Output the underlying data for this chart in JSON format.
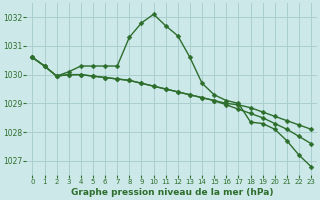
{
  "background_color": "#cce8e8",
  "grid_color": "#aacfcf",
  "line_color": "#2d6e2d",
  "marker_color": "#2d6e2d",
  "xlabel": "Graphe pression niveau de la mer (hPa)",
  "xlabel_color": "#2d6e2d",
  "ylim": [
    1026.5,
    1032.5
  ],
  "xlim": [
    -0.5,
    23.5
  ],
  "yticks": [
    1027,
    1028,
    1029,
    1030,
    1031,
    1032
  ],
  "xticks": [
    0,
    1,
    2,
    3,
    4,
    5,
    6,
    7,
    8,
    9,
    10,
    11,
    12,
    13,
    14,
    15,
    16,
    17,
    18,
    19,
    20,
    21,
    22,
    23
  ],
  "series": [
    {
      "x": [
        0,
        1,
        2,
        3,
        4,
        5,
        6,
        7,
        8,
        9,
        10,
        11,
        12,
        13,
        14,
        15,
        16,
        17,
        18,
        19,
        20,
        21,
        22,
        23
      ],
      "y": [
        1030.6,
        1030.3,
        1029.95,
        1030.1,
        1030.3,
        1030.3,
        1030.3,
        1030.3,
        1031.3,
        1031.8,
        1032.1,
        1031.7,
        1031.35,
        1030.6,
        1029.7,
        1029.3,
        1029.1,
        1029.0,
        1028.35,
        1028.3,
        1028.1,
        1027.7,
        1027.2,
        1026.8
      ],
      "marker": true
    },
    {
      "x": [
        0,
        1,
        2,
        3,
        4,
        5,
        6,
        7,
        8,
        9,
        10,
        11,
        12,
        13,
        14,
        15,
        16,
        17,
        18,
        19,
        20,
        21,
        22,
        23
      ],
      "y": [
        1030.6,
        1030.3,
        1029.95,
        1030.0,
        1030.0,
        1029.95,
        1029.9,
        1029.85,
        1029.8,
        1029.7,
        1029.6,
        1029.5,
        1029.4,
        1029.3,
        1029.2,
        1029.1,
        1029.0,
        1028.95,
        1028.85,
        1028.7,
        1028.55,
        1028.4,
        1028.25,
        1028.1
      ],
      "marker": false
    },
    {
      "x": [
        0,
        1,
        2,
        3,
        4,
        5,
        6,
        7,
        8,
        9,
        10,
        11,
        12,
        13,
        14,
        15,
        16,
        17,
        18,
        19,
        20,
        21,
        22,
        23
      ],
      "y": [
        1030.6,
        1030.3,
        1029.95,
        1030.0,
        1030.0,
        1029.95,
        1029.9,
        1029.85,
        1029.8,
        1029.7,
        1029.6,
        1029.5,
        1029.4,
        1029.3,
        1029.2,
        1029.1,
        1028.95,
        1028.8,
        1028.65,
        1028.5,
        1028.3,
        1028.1,
        1027.85,
        1027.6
      ],
      "marker": false
    },
    {
      "x": [
        0,
        2,
        3,
        4,
        5,
        6,
        7,
        8,
        14,
        15,
        16,
        17,
        18,
        19,
        20,
        21,
        22,
        23
      ],
      "y": [
        1030.6,
        1029.95,
        1030.1,
        1030.3,
        1030.3,
        1030.3,
        1030.3,
        1031.3,
        1029.7,
        1029.3,
        1029.1,
        1029.0,
        1028.35,
        1028.3,
        1028.1,
        1027.7,
        1027.2,
        1026.8
      ],
      "marker": true
    }
  ],
  "line_width": 1.0,
  "marker_size": 2.5
}
